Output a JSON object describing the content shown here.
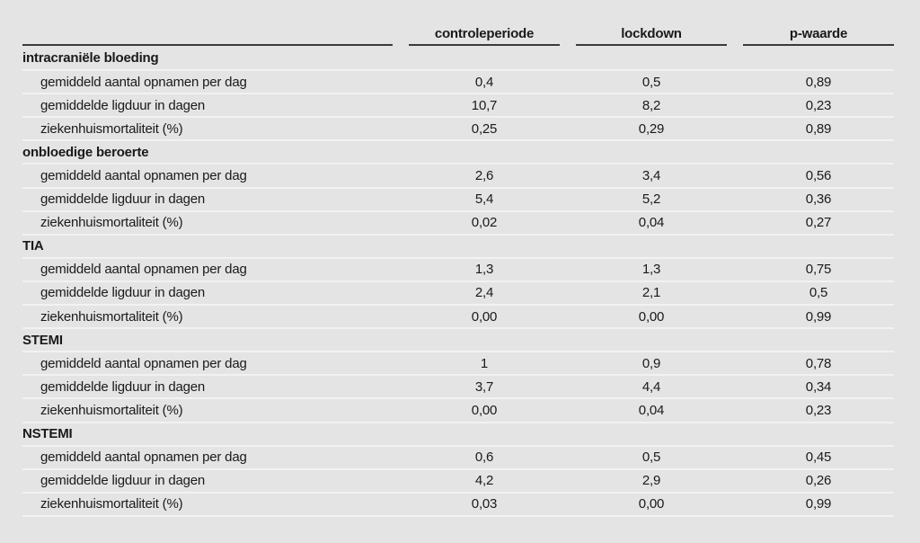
{
  "table": {
    "columns": [
      "controleperiode",
      "lockdown",
      "p-waarde"
    ],
    "row_labels": [
      "gemiddeld aantal opnamen per dag",
      "gemiddelde ligduur in dagen",
      "ziekenhuismortaliteit (%)"
    ],
    "sections": [
      {
        "name": "intracraniële bloeding",
        "rows": [
          [
            "0,4",
            "0,5",
            "0,89"
          ],
          [
            "10,7",
            "8,2",
            "0,23"
          ],
          [
            "0,25",
            "0,29",
            "0,89"
          ]
        ]
      },
      {
        "name": "onbloedige beroerte",
        "rows": [
          [
            "2,6",
            "3,4",
            "0,56"
          ],
          [
            "5,4",
            "5,2",
            "0,36"
          ],
          [
            "0,02",
            "0,04",
            "0,27"
          ]
        ]
      },
      {
        "name": "TIA",
        "rows": [
          [
            "1,3",
            "1,3",
            "0,75"
          ],
          [
            "2,4",
            "2,1",
            "0,5"
          ],
          [
            "0,00",
            "0,00",
            "0,99"
          ]
        ]
      },
      {
        "name": "STEMI",
        "rows": [
          [
            "1",
            "0,9",
            "0,78"
          ],
          [
            "3,7",
            "4,4",
            "0,34"
          ],
          [
            "0,00",
            "0,04",
            "0,23"
          ]
        ]
      },
      {
        "name": "NSTEMI",
        "rows": [
          [
            "0,6",
            "0,5",
            "0,45"
          ],
          [
            "4,2",
            "2,9",
            "0,26"
          ],
          [
            "0,03",
            "0,00",
            "0,99"
          ]
        ]
      }
    ],
    "colors": {
      "background": "#e4e4e4",
      "separator": "#f2f2f2",
      "header_rule": "#3a3a3a",
      "text": "#1a1a1a"
    }
  }
}
